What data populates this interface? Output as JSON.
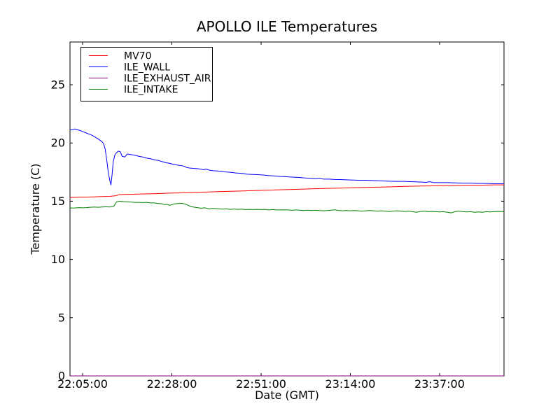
{
  "chart_data": {
    "type": "line",
    "title": "APOLLO ILE Temperatures",
    "xlabel": "Date (GMT)",
    "ylabel": "Temperature (C)",
    "grid": false,
    "legend_position": "upper left",
    "x_axis_note": "x values are minutes after 22:00:00 GMT",
    "xlim": [
      1.75,
      113.6
    ],
    "ylim": [
      0,
      28.67
    ],
    "x_ticks": [
      {
        "x": 5,
        "label": "22:05:00"
      },
      {
        "x": 28,
        "label": "22:28:00"
      },
      {
        "x": 51,
        "label": "22:51:00"
      },
      {
        "x": 74,
        "label": "23:14:00"
      },
      {
        "x": 97,
        "label": "23:37:00"
      }
    ],
    "y_ticks": [
      {
        "y": 0,
        "label": "0"
      },
      {
        "y": 5,
        "label": "5"
      },
      {
        "y": 10,
        "label": "10"
      },
      {
        "y": 15,
        "label": "15"
      },
      {
        "y": 20,
        "label": "20"
      },
      {
        "y": 25,
        "label": "25"
      }
    ],
    "series": [
      {
        "name": "MV70",
        "color": "#ff0000",
        "points": [
          [
            1.75,
            15.32
          ],
          [
            4,
            15.34
          ],
          [
            6,
            15.35
          ],
          [
            8,
            15.37
          ],
          [
            10,
            15.4
          ],
          [
            12,
            15.42
          ],
          [
            13.5,
            15.47
          ],
          [
            14.5,
            15.57
          ],
          [
            16,
            15.58
          ],
          [
            18,
            15.6
          ],
          [
            20,
            15.62
          ],
          [
            24,
            15.65
          ],
          [
            28,
            15.7
          ],
          [
            32,
            15.73
          ],
          [
            36,
            15.78
          ],
          [
            40,
            15.82
          ],
          [
            44,
            15.86
          ],
          [
            48,
            15.9
          ],
          [
            52,
            15.94
          ],
          [
            56,
            15.98
          ],
          [
            60,
            16.02
          ],
          [
            64,
            16.06
          ],
          [
            68,
            16.1
          ],
          [
            72,
            16.13
          ],
          [
            76,
            16.17
          ],
          [
            80,
            16.2
          ],
          [
            84,
            16.23
          ],
          [
            88,
            16.27
          ],
          [
            92,
            16.3
          ],
          [
            96,
            16.32
          ],
          [
            100,
            16.34
          ],
          [
            104,
            16.36
          ],
          [
            108,
            16.38
          ],
          [
            111,
            16.4
          ],
          [
            113.6,
            16.4
          ]
        ]
      },
      {
        "name": "ILE_WALL",
        "color": "#0000ff",
        "points": [
          [
            1.75,
            21.1
          ],
          [
            3,
            21.2
          ],
          [
            4.5,
            21.05
          ],
          [
            6,
            20.85
          ],
          [
            7.5,
            20.65
          ],
          [
            9,
            20.35
          ],
          [
            10,
            20.1
          ],
          [
            10.4,
            19.95
          ],
          [
            10.8,
            19.5
          ],
          [
            11.2,
            18.6
          ],
          [
            11.6,
            17.5
          ],
          [
            12,
            16.8
          ],
          [
            12.3,
            16.4
          ],
          [
            12.6,
            17.3
          ],
          [
            12.9,
            18.4
          ],
          [
            13.3,
            18.95
          ],
          [
            13.7,
            19.15
          ],
          [
            14.2,
            19.3
          ],
          [
            14.7,
            19.25
          ],
          [
            15.2,
            18.85
          ],
          [
            15.9,
            18.8
          ],
          [
            16.5,
            19.05
          ],
          [
            17.5,
            19.0
          ],
          [
            18.5,
            18.95
          ],
          [
            19.5,
            18.85
          ],
          [
            20.5,
            18.8
          ],
          [
            21.5,
            18.7
          ],
          [
            22.5,
            18.65
          ],
          [
            23.5,
            18.55
          ],
          [
            24.5,
            18.5
          ],
          [
            25.5,
            18.4
          ],
          [
            26.5,
            18.3
          ],
          [
            27.5,
            18.25
          ],
          [
            28.5,
            18.15
          ],
          [
            29.5,
            18.1
          ],
          [
            30.5,
            18.05
          ],
          [
            31.2,
            18.0
          ],
          [
            31.8,
            17.9
          ],
          [
            32.5,
            17.85
          ],
          [
            33.5,
            17.82
          ],
          [
            34.5,
            17.8
          ],
          [
            35.5,
            17.75
          ],
          [
            36.2,
            17.7
          ],
          [
            36.8,
            17.76
          ],
          [
            37.5,
            17.68
          ],
          [
            38.5,
            17.62
          ],
          [
            39.5,
            17.6
          ],
          [
            40.5,
            17.57
          ],
          [
            41.5,
            17.52
          ],
          [
            42.5,
            17.5
          ],
          [
            43.5,
            17.47
          ],
          [
            44.5,
            17.42
          ],
          [
            45.5,
            17.4
          ],
          [
            46.5,
            17.37
          ],
          [
            47.5,
            17.32
          ],
          [
            48.5,
            17.3
          ],
          [
            50,
            17.28
          ],
          [
            51.5,
            17.25
          ],
          [
            53,
            17.2
          ],
          [
            54.5,
            17.17
          ],
          [
            56,
            17.12
          ],
          [
            57.5,
            17.1
          ],
          [
            59,
            17.07
          ],
          [
            60.5,
            17.05
          ],
          [
            62,
            17.0
          ],
          [
            63.5,
            16.97
          ],
          [
            65,
            16.92
          ],
          [
            66,
            16.97
          ],
          [
            67,
            16.9
          ],
          [
            68.5,
            16.9
          ],
          [
            70,
            16.87
          ],
          [
            72,
            16.85
          ],
          [
            74,
            16.82
          ],
          [
            76,
            16.8
          ],
          [
            78,
            16.8
          ],
          [
            80,
            16.77
          ],
          [
            82,
            16.75
          ],
          [
            84,
            16.72
          ],
          [
            86,
            16.7
          ],
          [
            88,
            16.7
          ],
          [
            90,
            16.67
          ],
          [
            92,
            16.65
          ],
          [
            93.5,
            16.62
          ],
          [
            94.5,
            16.67
          ],
          [
            95.5,
            16.6
          ],
          [
            97,
            16.6
          ],
          [
            99,
            16.6
          ],
          [
            101,
            16.57
          ],
          [
            103,
            16.55
          ],
          [
            105,
            16.55
          ],
          [
            107,
            16.53
          ],
          [
            109,
            16.52
          ],
          [
            111,
            16.5
          ],
          [
            113.6,
            16.5
          ]
        ]
      },
      {
        "name": "ILE_EXHAUST_AIR",
        "color": "#800080",
        "points": [
          [
            1.75,
            0
          ],
          [
            113.6,
            0
          ]
        ]
      },
      {
        "name": "ILE_INTAKE",
        "color": "#008000",
        "points": [
          [
            1.75,
            14.42
          ],
          [
            3,
            14.42
          ],
          [
            4,
            14.45
          ],
          [
            5,
            14.43
          ],
          [
            6,
            14.45
          ],
          [
            7,
            14.48
          ],
          [
            8,
            14.5
          ],
          [
            9,
            14.48
          ],
          [
            10,
            14.5
          ],
          [
            11,
            14.52
          ],
          [
            12,
            14.5
          ],
          [
            13,
            14.55
          ],
          [
            13.8,
            14.95
          ],
          [
            14.5,
            15.0
          ],
          [
            15.5,
            14.97
          ],
          [
            16.5,
            14.95
          ],
          [
            17.5,
            14.93
          ],
          [
            18.5,
            14.9
          ],
          [
            19.5,
            14.9
          ],
          [
            20.5,
            14.88
          ],
          [
            21.5,
            14.9
          ],
          [
            22.5,
            14.85
          ],
          [
            23.5,
            14.85
          ],
          [
            24.5,
            14.8
          ],
          [
            25.5,
            14.78
          ],
          [
            26.2,
            14.7
          ],
          [
            26.8,
            14.73
          ],
          [
            27.4,
            14.65
          ],
          [
            28,
            14.7
          ],
          [
            28.6,
            14.76
          ],
          [
            29.5,
            14.8
          ],
          [
            30.5,
            14.82
          ],
          [
            31.5,
            14.75
          ],
          [
            32.5,
            14.6
          ],
          [
            33.5,
            14.5
          ],
          [
            34.5,
            14.45
          ],
          [
            35.5,
            14.4
          ],
          [
            36.5,
            14.43
          ],
          [
            37.5,
            14.35
          ],
          [
            38.5,
            14.38
          ],
          [
            40,
            14.35
          ],
          [
            41,
            14.32
          ],
          [
            42,
            14.35
          ],
          [
            43,
            14.3
          ],
          [
            44,
            14.33
          ],
          [
            45,
            14.3
          ],
          [
            46,
            14.32
          ],
          [
            47,
            14.28
          ],
          [
            48,
            14.3
          ],
          [
            49,
            14.28
          ],
          [
            50,
            14.3
          ],
          [
            51,
            14.28
          ],
          [
            52,
            14.3
          ],
          [
            53,
            14.25
          ],
          [
            54,
            14.28
          ],
          [
            55,
            14.25
          ],
          [
            56.5,
            14.26
          ],
          [
            58,
            14.25
          ],
          [
            59,
            14.22
          ],
          [
            60,
            14.25
          ],
          [
            61,
            14.22
          ],
          [
            62,
            14.2
          ],
          [
            63,
            14.23
          ],
          [
            64,
            14.2
          ],
          [
            65,
            14.22
          ],
          [
            66,
            14.2
          ],
          [
            67,
            14.18
          ],
          [
            68,
            14.2
          ],
          [
            69,
            14.23
          ],
          [
            70,
            14.26
          ],
          [
            71,
            14.2
          ],
          [
            72,
            14.18
          ],
          [
            73,
            14.2
          ],
          [
            74,
            14.18
          ],
          [
            75,
            14.2
          ],
          [
            76,
            14.18
          ],
          [
            77,
            14.15
          ],
          [
            78,
            14.18
          ],
          [
            79,
            14.2
          ],
          [
            80,
            14.18
          ],
          [
            81,
            14.15
          ],
          [
            82,
            14.18
          ],
          [
            83,
            14.15
          ],
          [
            84,
            14.12
          ],
          [
            85,
            14.15
          ],
          [
            86,
            14.18
          ],
          [
            87,
            14.15
          ],
          [
            88,
            14.12
          ],
          [
            89,
            14.15
          ],
          [
            90,
            14.1
          ],
          [
            91,
            14.05
          ],
          [
            92,
            14.12
          ],
          [
            93,
            14.15
          ],
          [
            94,
            14.1
          ],
          [
            95,
            14.12
          ],
          [
            96,
            14.1
          ],
          [
            97,
            14.08
          ],
          [
            98,
            14.1
          ],
          [
            99,
            14.05
          ],
          [
            100,
            14.0
          ],
          [
            101,
            14.1
          ],
          [
            102,
            14.15
          ],
          [
            103,
            14.1
          ],
          [
            104,
            14.08
          ],
          [
            105,
            14.1
          ],
          [
            106,
            14.05
          ],
          [
            107,
            14.08
          ],
          [
            108,
            14.05
          ],
          [
            109,
            14.1
          ],
          [
            110,
            14.08
          ],
          [
            111,
            14.1
          ],
          [
            112,
            14.12
          ],
          [
            113.6,
            14.1
          ]
        ]
      }
    ]
  }
}
